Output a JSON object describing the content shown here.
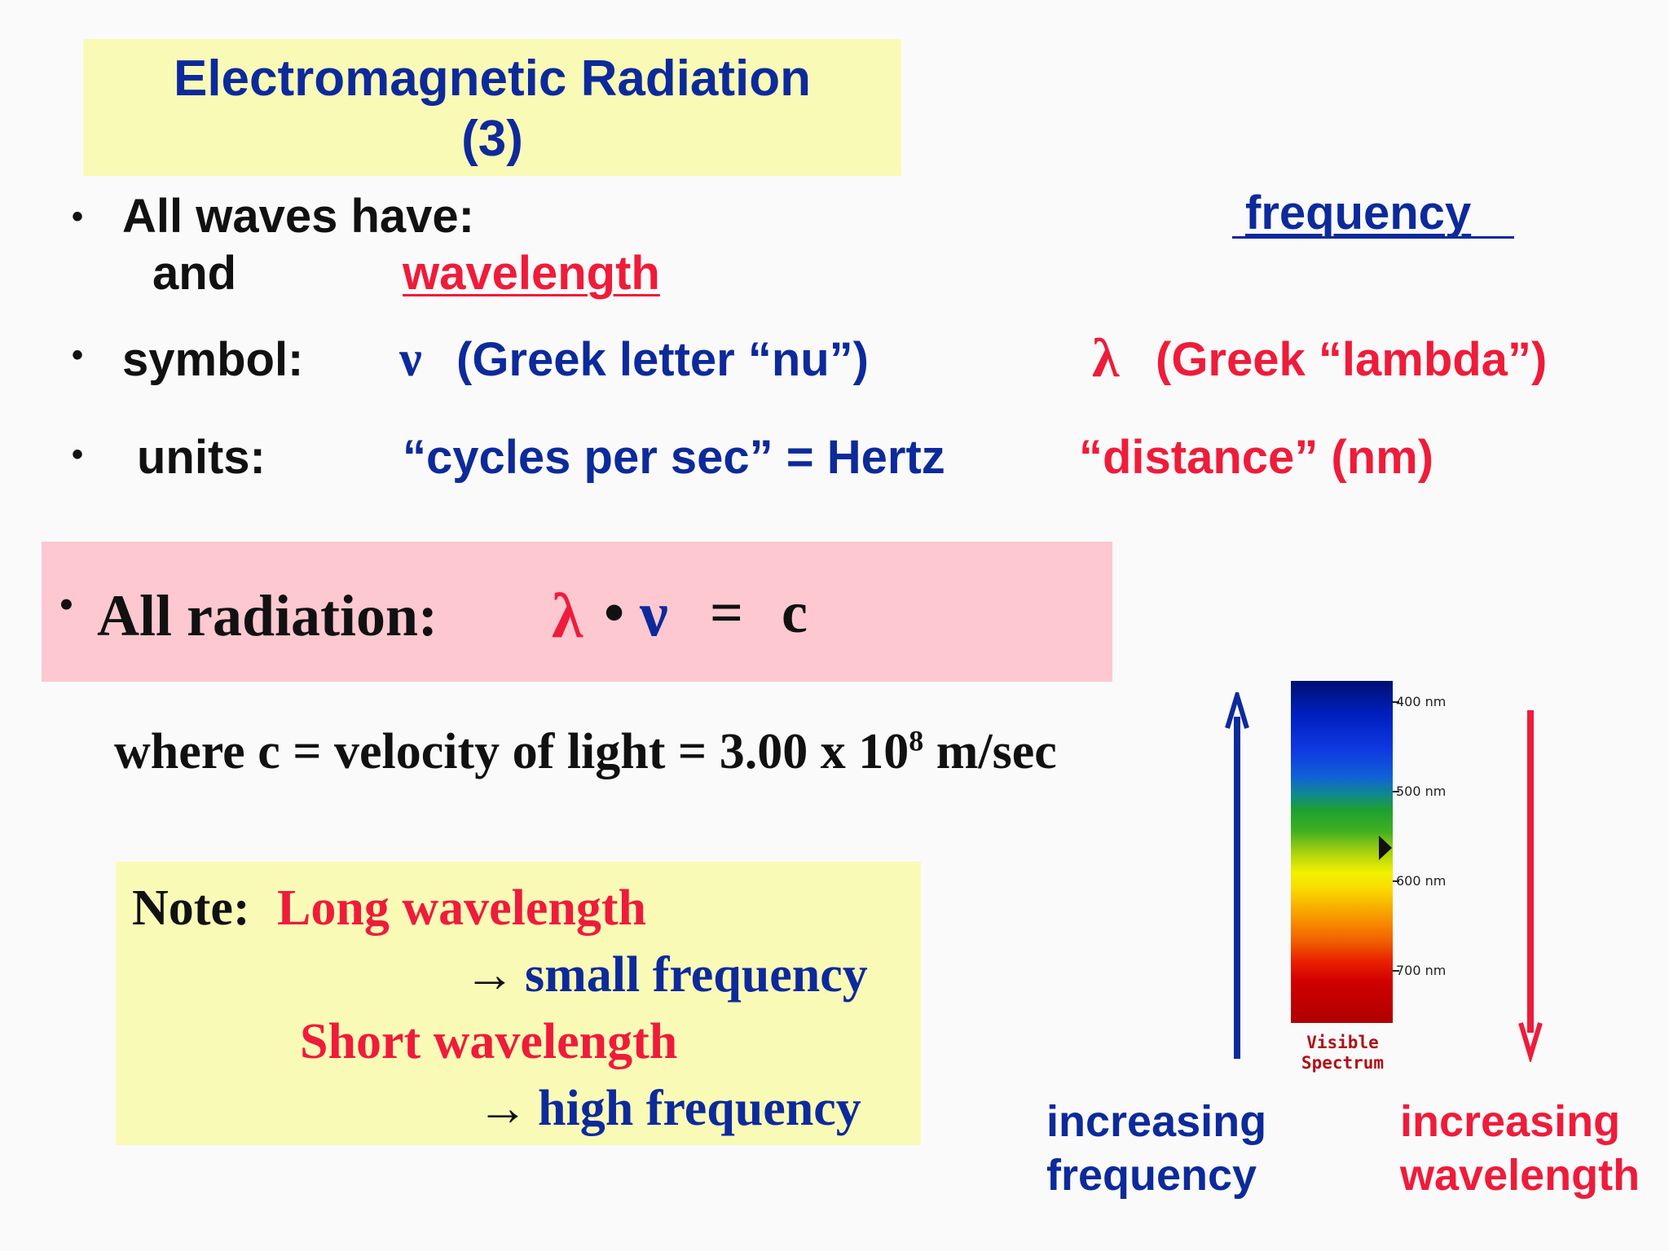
{
  "title": {
    "line1": "Electromagnetic Radiation",
    "line2": "(3)"
  },
  "bullets": {
    "mark": "•",
    "waves_intro": "All waves have:",
    "frequency": "frequency",
    "and": "and",
    "wavelength": "wavelength",
    "symbol_label": "symbol:",
    "nu_symbol": "ν",
    "nu_desc": "(Greek letter “nu”)",
    "lambda_symbol": "λ",
    "lambda_desc": "(Greek “lambda”)",
    "units_label": "units:",
    "freq_units": "“cycles per sec” = Hertz",
    "wave_units": "“distance” (nm)"
  },
  "radiation": {
    "mark": "•",
    "label": "All radiation:",
    "lambda": "λ",
    "dot": "•",
    "nu": "ν",
    "equals": "=",
    "c": "c"
  },
  "velocity": {
    "text": "where c = velocity of light = 3.00 x 10",
    "exponent": "8",
    "unit": " m/sec"
  },
  "note": {
    "label": "Note:",
    "long": "Long wavelength",
    "arrow1": "→",
    "small_freq": "small frequency",
    "short": "Short wavelength",
    "arrow2": "→",
    "high_freq": "high frequency"
  },
  "spectrum": {
    "ticks": [
      "400 nm",
      "500 nm",
      "600 nm",
      "700 nm"
    ],
    "label_line1": "Visible",
    "label_line2": "Spectrum"
  },
  "arrows": {
    "left_line1": "increasing",
    "left_line2": "frequency",
    "right_line1": "increasing",
    "right_line2": "wavelength"
  },
  "colors": {
    "blue": "#0d2a9b",
    "red": "#ee1c3a",
    "title_box": "#fafab7",
    "pink_box": "#fdc8d0"
  }
}
